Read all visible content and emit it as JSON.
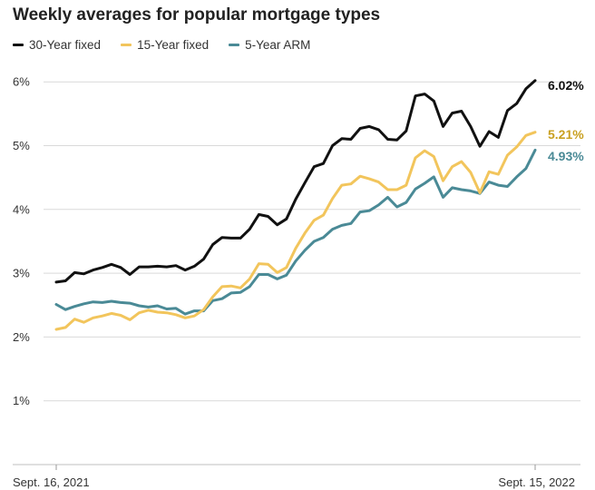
{
  "chart_data": {
    "type": "line",
    "title": "Weekly averages for popular mortgage types",
    "xlabel": "",
    "ylabel": "",
    "ylim": [
      0,
      6.5
    ],
    "yticks": [
      1,
      2,
      3,
      4,
      5,
      6
    ],
    "ytick_labels": [
      "1%",
      "2%",
      "3%",
      "4%",
      "5%",
      "6%"
    ],
    "x_start_label": "Sept. 16, 2021",
    "x_end_label": "Sept. 15, 2022",
    "grid": true,
    "legend_position": "top-left",
    "x_count": 53,
    "series": [
      {
        "name": "30-Year fixed",
        "color": "#111111",
        "end_label": "6.02%",
        "values": [
          2.86,
          2.88,
          3.01,
          2.99,
          3.05,
          3.09,
          3.14,
          3.09,
          2.98,
          3.1,
          3.1,
          3.11,
          3.1,
          3.12,
          3.05,
          3.11,
          3.22,
          3.45,
          3.56,
          3.55,
          3.55,
          3.69,
          3.92,
          3.89,
          3.76,
          3.85,
          4.16,
          4.42,
          4.67,
          4.72,
          5.0,
          5.11,
          5.1,
          5.27,
          5.3,
          5.25,
          5.1,
          5.09,
          5.23,
          5.78,
          5.81,
          5.7,
          5.3,
          5.51,
          5.54,
          5.3,
          4.99,
          5.22,
          5.13,
          5.55,
          5.66,
          5.89,
          6.02
        ]
      },
      {
        "name": "15-Year fixed",
        "color": "#f2c55c",
        "end_label": "5.21%",
        "values": [
          2.12,
          2.15,
          2.28,
          2.23,
          2.3,
          2.33,
          2.37,
          2.34,
          2.27,
          2.38,
          2.42,
          2.39,
          2.38,
          2.35,
          2.3,
          2.33,
          2.43,
          2.63,
          2.79,
          2.8,
          2.77,
          2.91,
          3.15,
          3.14,
          3.01,
          3.09,
          3.39,
          3.63,
          3.83,
          3.91,
          4.17,
          4.38,
          4.4,
          4.52,
          4.48,
          4.43,
          4.31,
          4.31,
          4.38,
          4.81,
          4.92,
          4.83,
          4.45,
          4.67,
          4.75,
          4.58,
          4.26,
          4.59,
          4.55,
          4.85,
          4.98,
          5.16,
          5.21
        ]
      },
      {
        "name": "5-Year ARM",
        "color": "#4a8a96",
        "end_label": "4.93%",
        "values": [
          2.51,
          2.43,
          2.48,
          2.52,
          2.55,
          2.54,
          2.56,
          2.54,
          2.53,
          2.49,
          2.47,
          2.49,
          2.44,
          2.45,
          2.36,
          2.41,
          2.41,
          2.57,
          2.6,
          2.69,
          2.7,
          2.79,
          2.98,
          2.98,
          2.91,
          2.97,
          3.19,
          3.36,
          3.5,
          3.56,
          3.69,
          3.75,
          3.78,
          3.96,
          3.98,
          4.07,
          4.19,
          4.04,
          4.11,
          4.32,
          4.41,
          4.51,
          4.19,
          4.34,
          4.31,
          4.29,
          4.25,
          4.43,
          4.38,
          4.36,
          4.51,
          4.64,
          4.93
        ]
      }
    ]
  }
}
